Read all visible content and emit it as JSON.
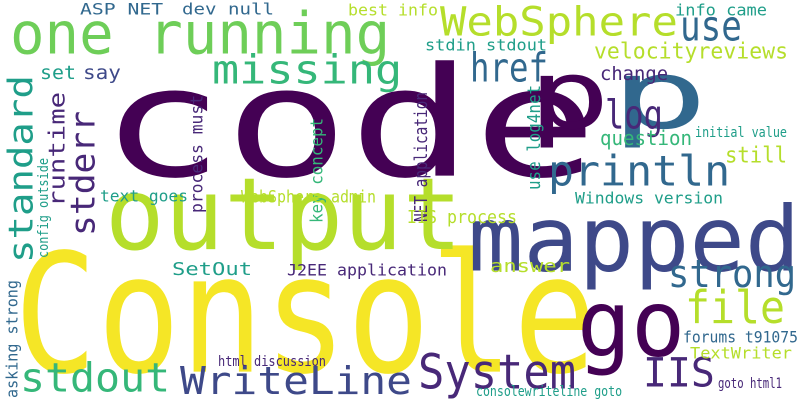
{
  "colors": {
    "yellow": "#f5e626",
    "yellow_green": "#b5de2b",
    "lime": "#6ece58",
    "green": "#35b779",
    "teal": "#1f9e89",
    "cyan_blue": "#26828e",
    "blue": "#31688e",
    "indigo": "#3e4989",
    "purple": "#482878",
    "dark_purple": "#440154"
  },
  "words": [
    {
      "text": "code",
      "color": "dark_purple"
    },
    {
      "text": "Console",
      "color": "yellow"
    },
    {
      "text": "p",
      "color": "dark_purple"
    },
    {
      "text": "p",
      "color": "blue"
    },
    {
      "text": "output",
      "color": "yellow_green"
    },
    {
      "text": "mapped",
      "color": "indigo"
    },
    {
      "text": "one running",
      "color": "lime"
    },
    {
      "text": "go",
      "color": "dark_purple"
    },
    {
      "text": "WebSphere",
      "color": "yellow_green"
    },
    {
      "text": "use",
      "color": "blue"
    },
    {
      "text": "standard",
      "color": "teal"
    },
    {
      "text": "stderr",
      "color": "purple"
    },
    {
      "text": "println",
      "color": "blue"
    },
    {
      "text": "missing",
      "color": "green"
    },
    {
      "text": "href",
      "color": "blue"
    },
    {
      "text": "log",
      "color": "purple"
    },
    {
      "text": "file",
      "color": "yellow_green"
    },
    {
      "text": "strong",
      "color": "blue"
    },
    {
      "text": "stdout",
      "color": "green"
    },
    {
      "text": "WriteLine",
      "color": "indigo"
    },
    {
      "text": "System",
      "color": "purple"
    },
    {
      "text": "IIS",
      "color": "purple"
    },
    {
      "text": "ASP NET",
      "color": "blue"
    },
    {
      "text": "dev null",
      "color": "blue"
    },
    {
      "text": "best info",
      "color": "yellow_green"
    },
    {
      "text": "info came",
      "color": "teal"
    },
    {
      "text": "stdin stdout",
      "color": "teal"
    },
    {
      "text": "velocityreviews",
      "color": "yellow_green"
    },
    {
      "text": "say",
      "color": "indigo"
    },
    {
      "text": "set",
      "color": "teal"
    },
    {
      "text": "change",
      "color": "purple"
    },
    {
      "text": "question",
      "color": "green"
    },
    {
      "text": "still",
      "color": "yellow_green"
    },
    {
      "text": "initial value",
      "color": "teal"
    },
    {
      "text": "runtime",
      "color": "purple"
    },
    {
      "text": "process must",
      "color": "purple"
    },
    {
      "text": "key concept",
      "color": "green"
    },
    {
      "text": "NET application",
      "color": "purple"
    },
    {
      "text": "use log4net",
      "color": "teal"
    },
    {
      "text": "text goes",
      "color": "teal"
    },
    {
      "text": "WebSphere admin",
      "color": "yellow_green"
    },
    {
      "text": "IIS process",
      "color": "yellow_green"
    },
    {
      "text": "Windows version",
      "color": "teal"
    },
    {
      "text": "config outside",
      "color": "teal"
    },
    {
      "text": "SetOut",
      "color": "teal"
    },
    {
      "text": "J2EE application",
      "color": "purple"
    },
    {
      "text": "answer",
      "color": "yellow_green"
    },
    {
      "text": "asking strong",
      "color": "blue"
    },
    {
      "text": "forums t91075",
      "color": "blue"
    },
    {
      "text": "TextWriter",
      "color": "yellow_green"
    },
    {
      "text": "html discussion",
      "color": "purple"
    },
    {
      "text": "consolewriteline goto",
      "color": "teal"
    },
    {
      "text": "goto html1",
      "color": "purple"
    }
  ]
}
